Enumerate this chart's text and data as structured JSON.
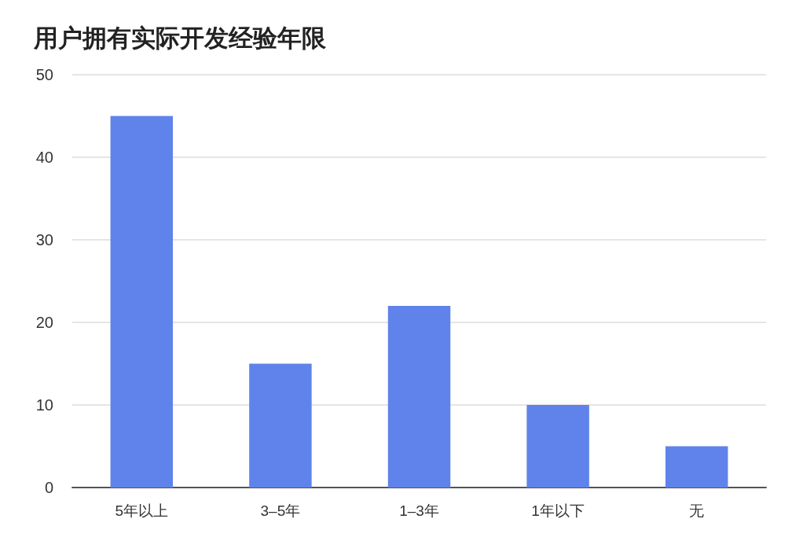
{
  "chart_data": {
    "type": "bar",
    "title": "用户拥有实际开发经验年限",
    "categories": [
      "5年以上",
      "3–5年",
      "1–3年",
      "1年以下",
      "无"
    ],
    "values": [
      45,
      15,
      22,
      10,
      5
    ],
    "color": "#5f83ea",
    "ylim": [
      0,
      50
    ],
    "yticks": [
      0,
      10,
      20,
      30,
      40,
      50
    ],
    "grid": "y"
  }
}
